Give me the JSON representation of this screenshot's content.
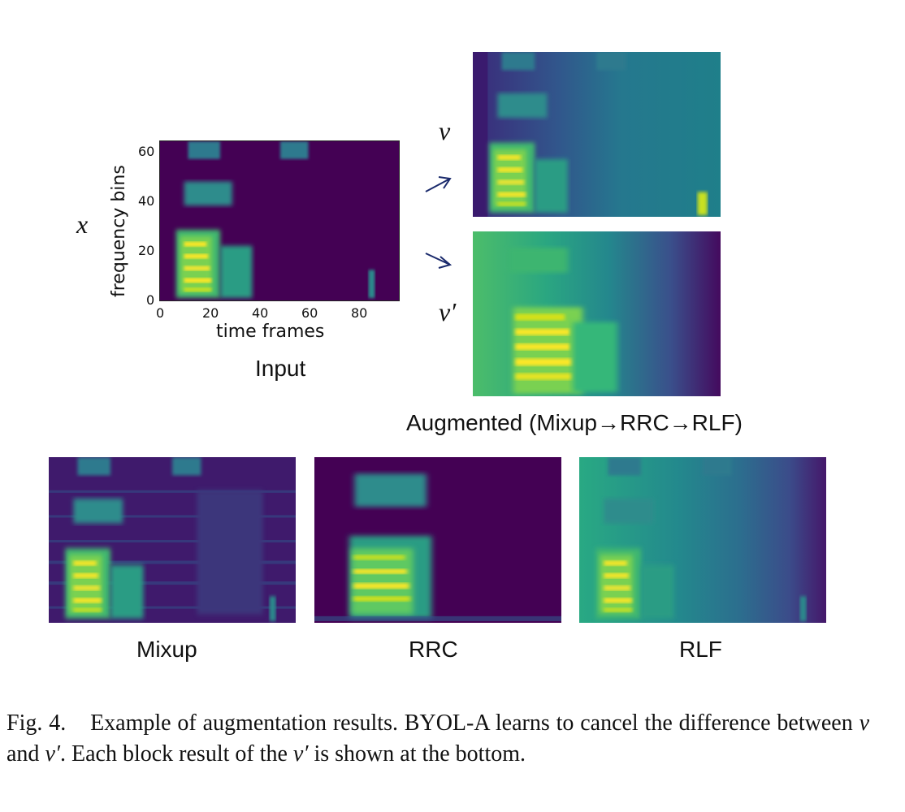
{
  "figure": {
    "input": {
      "var": "x",
      "label": "Input",
      "ylabel": "frequency bins",
      "xlabel": "time frames",
      "yticks": [
        "0",
        "20",
        "40",
        "60"
      ],
      "xticks": [
        "0",
        "20",
        "40",
        "60",
        "80"
      ]
    },
    "augmented": {
      "var_v": "v",
      "var_v_prime": "v′",
      "label": "Augmented (Mixup→RRC→RLF)"
    },
    "blocks": [
      {
        "label": "Mixup"
      },
      {
        "label": "RRC"
      },
      {
        "label": "RLF"
      }
    ],
    "arrow_glyph": "→"
  },
  "caption": {
    "fig_label": "Fig. 4.",
    "text_1": "Example of augmentation results. BYOL-A learns to cancel the difference between",
    "var_v": "v",
    "text_and": "and",
    "var_v_prime": "v′",
    "text_2": ". Each block result of the",
    "text_3": "is shown at the bottom."
  },
  "colors": {
    "viridis_dark": "#440154",
    "viridis_blue": "#3b528b",
    "viridis_teal": "#21918c",
    "viridis_green": "#5ec962",
    "viridis_yellow": "#fde725",
    "arrow_color": "#1a2a6c"
  }
}
